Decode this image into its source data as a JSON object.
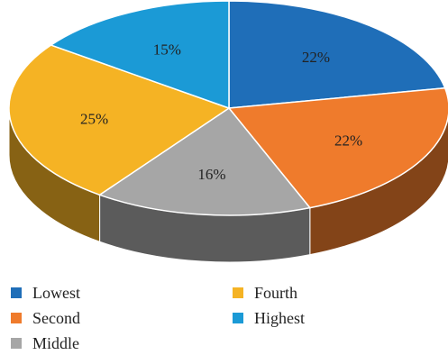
{
  "chart_data": {
    "type": "pie",
    "style": "3d",
    "title": "",
    "categories": [
      "Lowest",
      "Second",
      "Middle",
      "Fourth",
      "Highest"
    ],
    "values": [
      22,
      22,
      16,
      25,
      15
    ],
    "labels": [
      "22%",
      "22%",
      "16%",
      "25%",
      "15%"
    ],
    "unit": "%",
    "colors": [
      "#1f6eb8",
      "#ef7b2c",
      "#a6a6a6",
      "#f5b324",
      "#1b9ad6"
    ],
    "legend_position": "bottom"
  }
}
